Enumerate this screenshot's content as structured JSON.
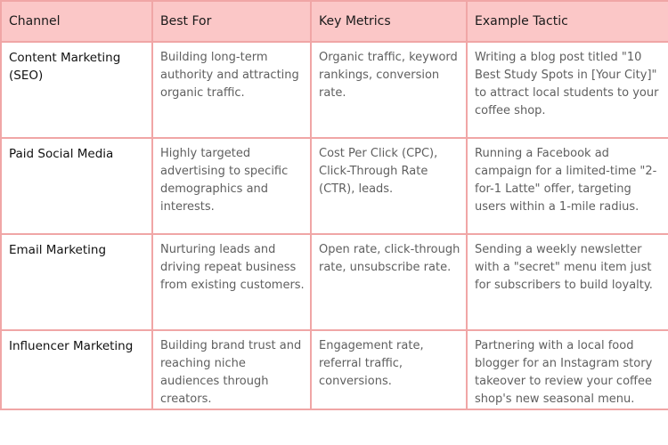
{
  "table": {
    "headers": [
      "Channel",
      "Best For",
      "Key Metrics",
      "Example Tactic"
    ],
    "rows": [
      {
        "channel": "Content Marketing (SEO)",
        "best_for": "Building long-term authority and attracting organic traffic.",
        "key_metrics": "Organic traffic, keyword rankings, conversion rate.",
        "example_tactic": "Writing a blog post titled \"10 Best Study Spots in [Your City]\" to attract local students to your coffee shop."
      },
      {
        "channel": "Paid Social Media",
        "best_for": "Highly targeted advertising to specific demographics and interests.",
        "key_metrics": "Cost Per Click (CPC), Click-Through Rate (CTR), leads.",
        "example_tactic": "Running a Facebook ad campaign for a limited-time \"2-for-1 Latte\" offer, targeting users within a 1-mile radius."
      },
      {
        "channel": "Email Marketing",
        "best_for": "Nurturing leads and driving repeat business from existing customers.",
        "key_metrics": "Open rate, click-through rate, unsubscribe rate.",
        "example_tactic": "Sending a weekly newsletter with a \"secret\" menu item just for subscribers to build loyalty."
      },
      {
        "channel": "Influencer Marketing",
        "best_for": "Building brand trust and reaching niche audiences through creators.",
        "key_metrics": "Engagement rate, referral traffic, conversions.",
        "example_tactic": "Partnering with a local food blogger for an Instagram story takeover to review your coffee shop's new seasonal menu."
      }
    ]
  }
}
